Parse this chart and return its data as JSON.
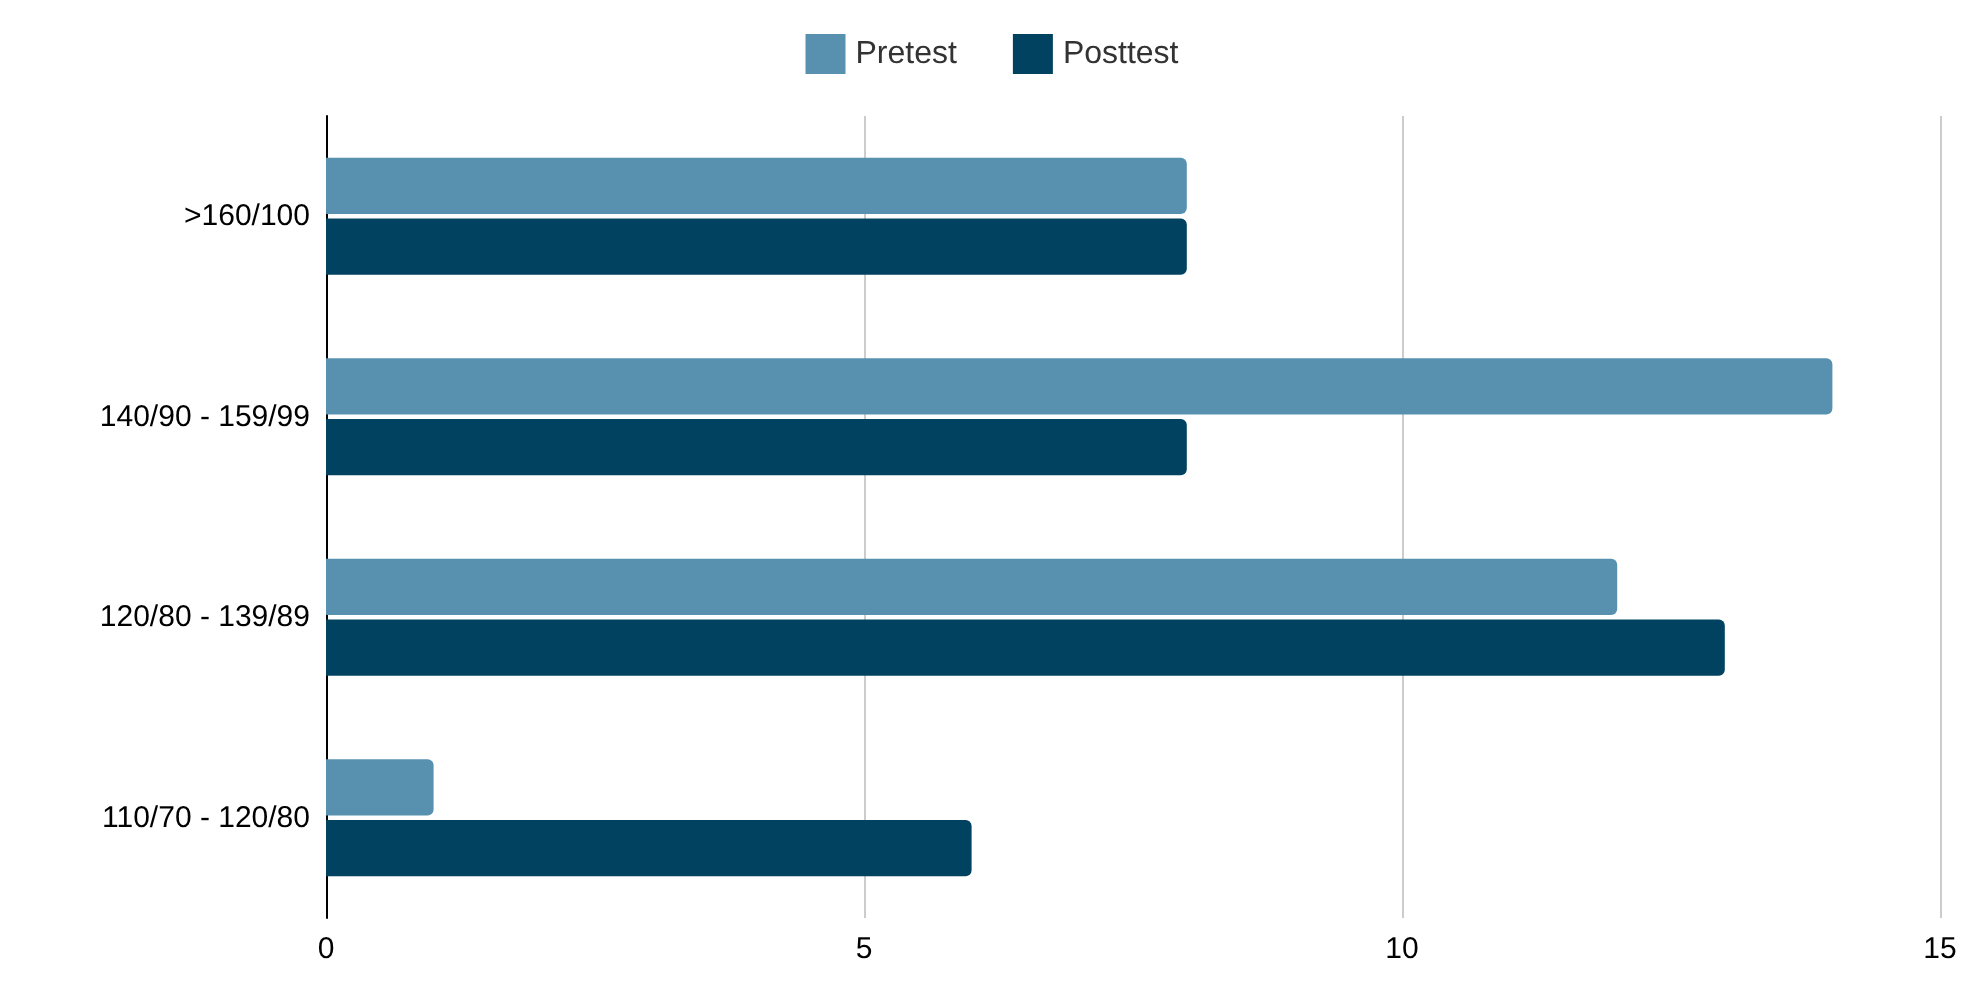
{
  "chart_data": {
    "type": "bar",
    "orientation": "horizontal",
    "categories": [
      ">160/100",
      "140/90 - 159/99",
      "120/80 - 139/89",
      "110/70 - 120/80"
    ],
    "series": [
      {
        "name": "Pretest",
        "color": "#5891b0",
        "values": [
          8,
          14,
          12,
          1
        ]
      },
      {
        "name": "Posttest",
        "color": "#00425f",
        "values": [
          8,
          8,
          13,
          6
        ]
      }
    ],
    "xlim": [
      0,
      15
    ],
    "xticks": [
      0,
      5,
      10,
      15
    ],
    "grid": "x",
    "legend": "top"
  }
}
